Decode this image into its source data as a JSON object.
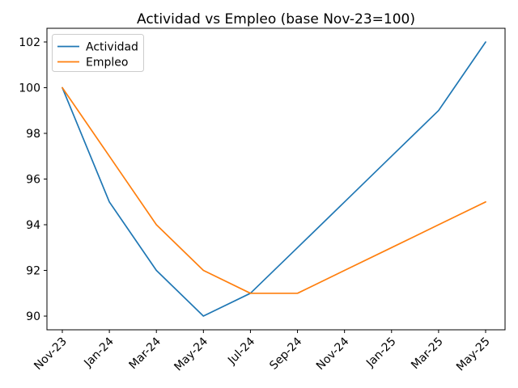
{
  "chart_data": {
    "type": "line",
    "title": "Actividad vs Empleo (base Nov-23=100)",
    "categories": [
      "Nov-23",
      "Jan-24",
      "Mar-24",
      "May-24",
      "Jul-24",
      "Sep-24",
      "Nov-24",
      "Jan-25",
      "Mar-25",
      "May-25"
    ],
    "series": [
      {
        "name": "Actividad",
        "color": "#1f77b4",
        "values": [
          100,
          95,
          92,
          90,
          91,
          93,
          95,
          97,
          99,
          102
        ]
      },
      {
        "name": "Empleo",
        "color": "#ff7f0e",
        "values": [
          100,
          97,
          94,
          92,
          91,
          91,
          92,
          93,
          94,
          95
        ]
      }
    ],
    "xlabel": "",
    "ylabel": "",
    "ylim": [
      89.4,
      102.6
    ],
    "yticks": [
      90,
      92,
      94,
      96,
      98,
      100,
      102
    ],
    "x_tick_rotation": 45,
    "grid": false,
    "legend_position": "upper left",
    "axis_color": "#000000",
    "background_color": "#ffffff"
  }
}
